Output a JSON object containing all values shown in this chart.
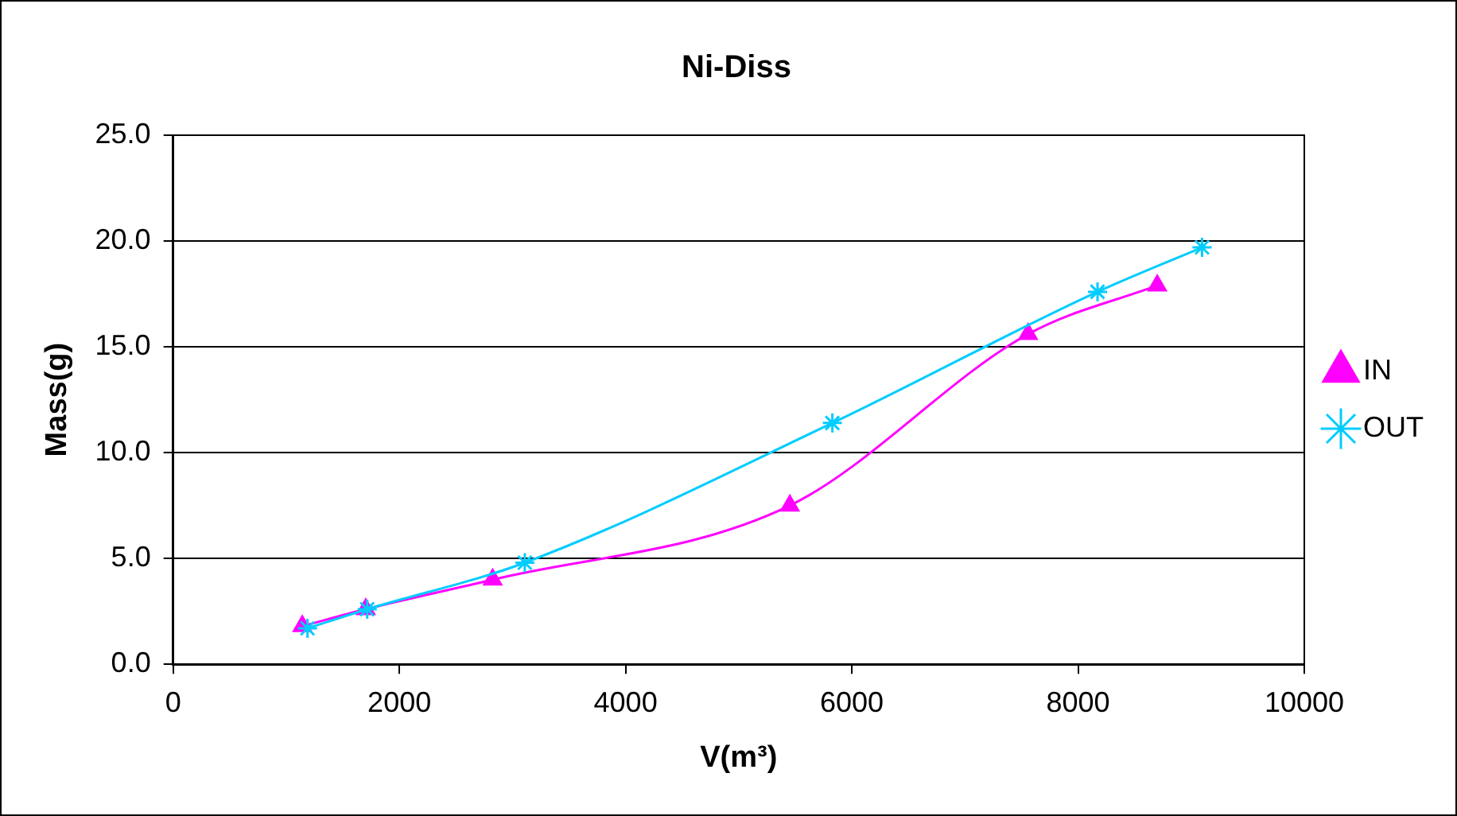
{
  "chart_data": {
    "type": "line",
    "title": "Ni-Diss",
    "xlabel": "V(m³)",
    "ylabel": "Mass(g)",
    "xlim": [
      0,
      10000
    ],
    "xticks": [
      0,
      2000,
      4000,
      6000,
      8000,
      10000
    ],
    "ylim": [
      0,
      25
    ],
    "yticks": [
      {
        "value": 0,
        "label": "0.0"
      },
      {
        "value": 5,
        "label": "5.0"
      },
      {
        "value": 10,
        "label": "10.0"
      },
      {
        "value": 15,
        "label": "15.0"
      },
      {
        "value": 20,
        "label": "20.0"
      },
      {
        "value": 25,
        "label": "25.0"
      }
    ],
    "grid": "y",
    "legend": "right",
    "line_style": "solid",
    "series": [
      {
        "name": "IN",
        "color": "#ff00ff",
        "marker": "triangle",
        "x": [
          1142,
          1703,
          2825,
          5452,
          7558,
          8700
        ],
        "values": [
          1.8,
          2.6,
          4.0,
          7.5,
          15.6,
          17.9
        ]
      },
      {
        "name": "OUT",
        "color": "#00ccff",
        "marker": "cross",
        "x": [
          1188,
          1716,
          3109,
          5828,
          8172,
          9096
        ],
        "values": [
          1.7,
          2.6,
          4.8,
          11.4,
          17.6,
          19.7
        ]
      }
    ]
  }
}
